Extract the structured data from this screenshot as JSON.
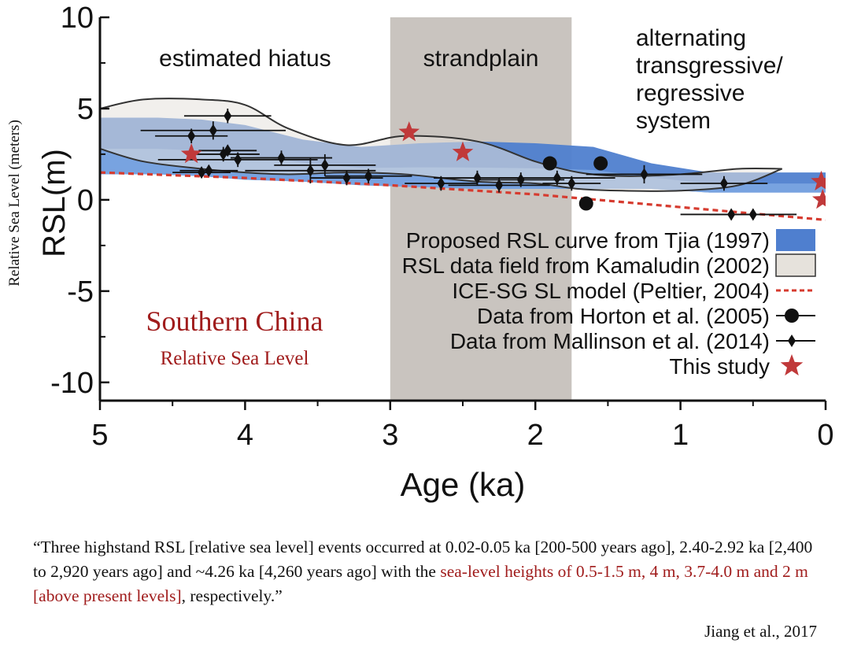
{
  "chart_data": {
    "type": "scatter",
    "ylabel": "RSL(m)",
    "ylabel_outer": "Relative Sea Level (meters)",
    "xlabel": "Age (ka)",
    "xlim": [
      5,
      0
    ],
    "ylim": [
      -11,
      10
    ],
    "x_ticks": [
      "5",
      "4",
      "3",
      "2",
      "1",
      "0"
    ],
    "y_ticks": [
      "10",
      "5",
      "0",
      "-5",
      "-10"
    ],
    "y_tick_values": [
      10,
      5,
      0,
      -5,
      -10
    ],
    "x_tick_values": [
      5,
      4,
      3,
      2,
      1,
      0
    ],
    "zones": [
      {
        "label": "estimated hiatus",
        "x_start": 5,
        "x_end": 3
      },
      {
        "label": "strandplain",
        "x_start": 3,
        "x_end": 1.75
      },
      {
        "label": "alternating transgressive/ regressive system",
        "x_start": 1.75,
        "x_end": 0
      }
    ],
    "overlay_title": "Southern China",
    "overlay_subtitle": "Relative Sea Level",
    "legend": [
      {
        "label": "Proposed RSL curve from Tjia (1997)",
        "symbol": "band",
        "color": "#4f7fcf"
      },
      {
        "label": "RSL data field from Kamaludin (2002)",
        "symbol": "field",
        "color": "#e6e2dc"
      },
      {
        "label": "ICE-SG SL model (Peltier, 2004)",
        "symbol": "dashed",
        "color": "#d63b2f"
      },
      {
        "label": "Data from Horton et al. (2005)",
        "symbol": "circle",
        "color": "#111111"
      },
      {
        "label": "Data from Mallinson et al. (2014)",
        "symbol": "diamond",
        "color": "#111111"
      },
      {
        "label": "This study",
        "symbol": "star",
        "color": "#c0393a"
      }
    ],
    "series": [
      {
        "name": "Proposed RSL curve from Tjia (1997)",
        "kind": "band",
        "x": [
          5,
          4.6,
          4.3,
          4.0,
          3.6,
          3.2,
          2.8,
          2.4,
          2.0,
          1.6,
          1.2,
          0.8,
          0.4,
          0
        ],
        "upper": [
          4.5,
          4.5,
          4.4,
          4.1,
          3.3,
          2.9,
          3.1,
          3.2,
          3.1,
          2.9,
          2.0,
          1.5,
          1.5,
          1.5
        ],
        "lower": [
          1.4,
          1.4,
          1.3,
          1.1,
          1.0,
          0.8,
          0.7,
          0.6,
          0.6,
          0.6,
          0.6,
          0.4,
          0.4,
          0.4
        ]
      },
      {
        "name": "RSL data field from Kamaludin (2002)",
        "kind": "field",
        "x": [
          5,
          4.7,
          4.3,
          4.0,
          3.7,
          3.3,
          2.9,
          2.4,
          2.0,
          1.7,
          1.4,
          1.0,
          0.6,
          0.3
        ],
        "upper": [
          5.0,
          5.5,
          5.5,
          5.2,
          3.9,
          3.0,
          3.5,
          3.2,
          2.1,
          1.5,
          1.3,
          1.4,
          1.7,
          1.7
        ],
        "lower": [
          2.8,
          2.1,
          1.7,
          1.5,
          1.4,
          1.5,
          1.4,
          1.0,
          0.9,
          0.6,
          0.5,
          0.5,
          0.8,
          1.7
        ]
      },
      {
        "name": "ICE-SG SL model (Peltier, 2004)",
        "kind": "dashed",
        "x": [
          5,
          4,
          3,
          2,
          1,
          0
        ],
        "y": [
          1.5,
          1.2,
          0.8,
          0.3,
          -0.4,
          -1.1
        ]
      },
      {
        "name": "Data from Horton et al. (2005)",
        "kind": "circle",
        "points": [
          {
            "x": 1.9,
            "y": 2.0
          },
          {
            "x": 1.55,
            "y": 2.0
          },
          {
            "x": 1.65,
            "y": -0.2
          }
        ]
      },
      {
        "name": "Data from Mallinson et al. (2014)",
        "kind": "diamond",
        "points": [
          {
            "x": 4.12,
            "y": 4.6,
            "xerr": 0.3,
            "yerr": 0.4
          },
          {
            "x": 4.22,
            "y": 3.8,
            "xerr": 0.5,
            "yerr": 0.5
          },
          {
            "x": 4.37,
            "y": 3.5,
            "xerr": 0.25,
            "yerr": 0.4
          },
          {
            "x": 4.15,
            "y": 2.5,
            "xerr": 0.25,
            "yerr": 0.4
          },
          {
            "x": 4.12,
            "y": 2.7,
            "xerr": 0.2,
            "yerr": 0.3
          },
          {
            "x": 4.05,
            "y": 2.2,
            "xerr": 0.55,
            "yerr": 0.4
          },
          {
            "x": 4.3,
            "y": 1.5,
            "xerr": 0.2,
            "yerr": 0.3
          },
          {
            "x": 4.25,
            "y": 1.6,
            "xerr": 0.2,
            "yerr": 0.3
          },
          {
            "x": 3.75,
            "y": 2.3,
            "xerr": 0.35,
            "yerr": 0.4
          },
          {
            "x": 3.55,
            "y": 1.6,
            "xerr": 0.45,
            "yerr": 0.7
          },
          {
            "x": 3.45,
            "y": 1.9,
            "xerr": 0.35,
            "yerr": 0.6
          },
          {
            "x": 3.3,
            "y": 1.2,
            "xerr": 0.25,
            "yerr": 0.4
          },
          {
            "x": 3.15,
            "y": 1.3,
            "xerr": 0.3,
            "yerr": 0.4
          },
          {
            "x": 2.65,
            "y": 0.9,
            "xerr": 0.25,
            "yerr": 0.4
          },
          {
            "x": 2.4,
            "y": 1.2,
            "xerr": 0.3,
            "yerr": 0.4
          },
          {
            "x": 2.25,
            "y": 0.8,
            "xerr": 0.35,
            "yerr": 0.4
          },
          {
            "x": 2.1,
            "y": 1.1,
            "xerr": 0.3,
            "yerr": 0.4
          },
          {
            "x": 1.85,
            "y": 1.2,
            "xerr": 0.4,
            "yerr": 0.4
          },
          {
            "x": 1.75,
            "y": 0.9,
            "xerr": 0.2,
            "yerr": 0.4
          },
          {
            "x": 1.25,
            "y": 1.4,
            "xerr": 0.4,
            "yerr": 0.5
          },
          {
            "x": 0.7,
            "y": 0.9,
            "xerr": 0.3,
            "yerr": 0.4
          },
          {
            "x": 0.65,
            "y": -0.8,
            "xerr": 0.35,
            "yerr": 0.3
          },
          {
            "x": 0.5,
            "y": -0.8,
            "xerr": 0.3,
            "yerr": 0.3
          }
        ]
      },
      {
        "name": "This study",
        "kind": "star",
        "points": [
          {
            "x": 4.37,
            "y": 2.5
          },
          {
            "x": 2.87,
            "y": 3.7
          },
          {
            "x": 2.5,
            "y": 2.6
          },
          {
            "x": 0.03,
            "y": 1.0
          },
          {
            "x": 0.02,
            "y": 0.0
          }
        ]
      }
    ],
    "grid": false
  },
  "quote": {
    "part1": "“Three highstand RSL [relative sea level] events occurred at 0.02-0.05 ka [200-500 years ago], 2.40-2.92 ka [2,400 to 2,920 years ago] and ~4.26 ka [4,260 years ago] with the ",
    "highlight": "sea-level heights of 0.5-1.5 m, 4 m, 3.7-4.0 m and 2 m [above present levels]",
    "part2": ", respectively.”"
  },
  "citation": "Jiang et al., 2017",
  "colors": {
    "band": "#4f7fcf",
    "band_light": "#7ea8e3",
    "field": "#e6e2dc",
    "strandplain": "#c9c4bf",
    "dashed": "#d63b2f",
    "star": "#c0393a",
    "title_red": "#a01c1c"
  }
}
